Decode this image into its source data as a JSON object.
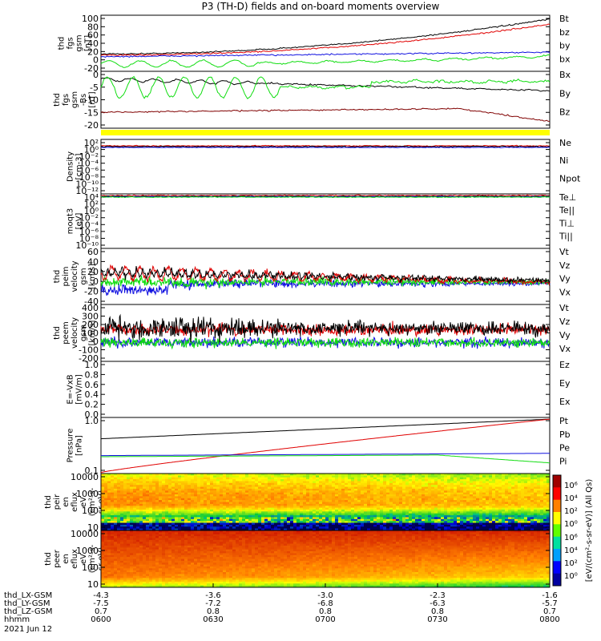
{
  "title": "P3 (TH-D) fields and on-board moments overview",
  "colors": {
    "black": "#000000",
    "red": "#e00000",
    "green": "#10dd10",
    "blue": "#1010e0",
    "darkred": "#800000",
    "yellow": "#ffff00"
  },
  "chart_data": [
    {
      "type": "line",
      "id": "fgs1",
      "ylabel": [
        "thd",
        "fgs",
        "gsm",
        "[nT]"
      ],
      "ylim": [
        -20,
        100
      ],
      "yticks": [
        "100",
        "80",
        "60",
        "40",
        "20",
        "0",
        "-20"
      ],
      "series": [
        {
          "name": "Bt",
          "color": "black"
        },
        {
          "name": "bz",
          "color": "red"
        },
        {
          "name": "by",
          "color": "green"
        },
        {
          "name": "bx",
          "color": "blue"
        }
      ]
    },
    {
      "type": "line",
      "id": "fgs2",
      "ylabel": [
        "thd",
        "fgs",
        "gsm",
        "-Bs",
        "[nT]"
      ],
      "ylim": [
        -22,
        2
      ],
      "yticks": [
        "0",
        "-5",
        "-10",
        "-15",
        "-20"
      ],
      "series": [
        {
          "name": "Bx",
          "color": "black"
        },
        {
          "name": "By",
          "color": "green"
        },
        {
          "name": "Bz",
          "color": "darkred"
        }
      ]
    },
    {
      "type": "line",
      "id": "density",
      "ylabel": [
        "Density",
        "[cm-3]"
      ],
      "log": true,
      "yticks": [
        "10²",
        "10⁰",
        "10⁻²",
        "10⁻⁴",
        "10⁻⁶",
        "10⁻⁸",
        "10⁻¹⁰",
        "10⁻¹²"
      ],
      "series": [
        {
          "name": "Ne",
          "color": "red"
        },
        {
          "name": "Ni",
          "color": "black"
        },
        {
          "name": "Npot",
          "color": "blue"
        }
      ]
    },
    {
      "type": "line",
      "id": "temp",
      "ylabel": [
        "moqt3",
        "[eV]"
      ],
      "log": true,
      "yticks": [
        "10⁴",
        "10²",
        "10⁰",
        "10⁻²",
        "10⁻⁴",
        "10⁻⁶",
        "10⁻⁸",
        "10⁻¹⁰"
      ],
      "series": [
        {
          "name": "Te⊥",
          "color": "red"
        },
        {
          "name": "Te||",
          "color": "black"
        },
        {
          "name": "Ti⊥",
          "color": "blue"
        },
        {
          "name": "Ti||",
          "color": "green"
        }
      ]
    },
    {
      "type": "line",
      "id": "peim",
      "ylabel": [
        "thd",
        "peim",
        "velocity",
        "gsm",
        "[km/s]"
      ],
      "ylim": [
        -40,
        60
      ],
      "yticks": [
        "60",
        "40",
        "20",
        "0",
        "-20",
        "-40"
      ],
      "series": [
        {
          "name": "Vt",
          "color": "black"
        },
        {
          "name": "Vz",
          "color": "red"
        },
        {
          "name": "Vy",
          "color": "green"
        },
        {
          "name": "Vx",
          "color": "blue"
        }
      ]
    },
    {
      "type": "line",
      "id": "peem",
      "ylabel": [
        "thd",
        "peem",
        "velocity",
        "gsm",
        "[km/s]"
      ],
      "ylim": [
        -200,
        400
      ],
      "yticks": [
        "400",
        "300",
        "200",
        "100",
        "0",
        "-100",
        "-200"
      ],
      "series": [
        {
          "name": "Vt",
          "color": "black"
        },
        {
          "name": "Vz",
          "color": "red"
        },
        {
          "name": "Vy",
          "color": "green"
        },
        {
          "name": "Vx",
          "color": "blue"
        }
      ]
    },
    {
      "type": "line",
      "id": "efield",
      "ylabel": [
        "E=-VxB",
        "[mV/m]"
      ],
      "ylim": [
        0,
        1
      ],
      "yticks": [
        "1.0",
        "0.8",
        "0.6",
        "0.4",
        "0.2",
        "0.0"
      ],
      "series": [
        {
          "name": "Ez",
          "color": "red"
        },
        {
          "name": "Ey",
          "color": "green"
        },
        {
          "name": "Ex",
          "color": "blue"
        }
      ]
    },
    {
      "type": "line",
      "id": "pressure",
      "ylabel": [
        "Pressure",
        "[nPa]"
      ],
      "log": true,
      "yticks": [
        "1.0",
        "0.1"
      ],
      "series": [
        {
          "name": "Pt",
          "color": "black"
        },
        {
          "name": "Pb",
          "color": "red"
        },
        {
          "name": "Pe",
          "color": "green"
        },
        {
          "name": "Pi",
          "color": "blue"
        }
      ]
    },
    {
      "type": "heatmap",
      "id": "peir",
      "ylabel": [
        "thd",
        "peir",
        "en",
        "eflux",
        "eV",
        "(cm²-s-",
        "sr-eV)"
      ],
      "log": true,
      "yticks": [
        "10000",
        "1000",
        "100",
        "10"
      ]
    },
    {
      "type": "heatmap",
      "id": "peer",
      "ylabel": [
        "thd",
        "peer",
        "en",
        "eflux",
        "eV",
        "(cm²-s-",
        "sr-eV)"
      ],
      "log": true,
      "yticks": [
        "10000",
        "1000",
        "100",
        "10"
      ]
    }
  ],
  "colorbar": {
    "label": "[eV/(cm²-s-sr-eV)] (All Qs)",
    "ticks": [
      "10⁶",
      "10⁴",
      "10²",
      "10⁰"
    ]
  },
  "xaxis": {
    "rows": [
      {
        "label": "thd_LX-GSM",
        "values": [
          "-4.3",
          "-3.6",
          "-3.0",
          "-2.3",
          "-1.6"
        ]
      },
      {
        "label": "thd_LY-GSM",
        "values": [
          "-7.5",
          "-7.2",
          "-6.8",
          "-6.3",
          "-5.7"
        ]
      },
      {
        "label": "thd_LZ-GSM",
        "values": [
          "0.7",
          "0.8",
          "0.8",
          "0.8",
          "0.7"
        ]
      },
      {
        "label": "hhmm",
        "values": [
          "0600",
          "0630",
          "0700",
          "0730",
          "0800"
        ]
      }
    ],
    "date": "2021 Jun 12"
  }
}
